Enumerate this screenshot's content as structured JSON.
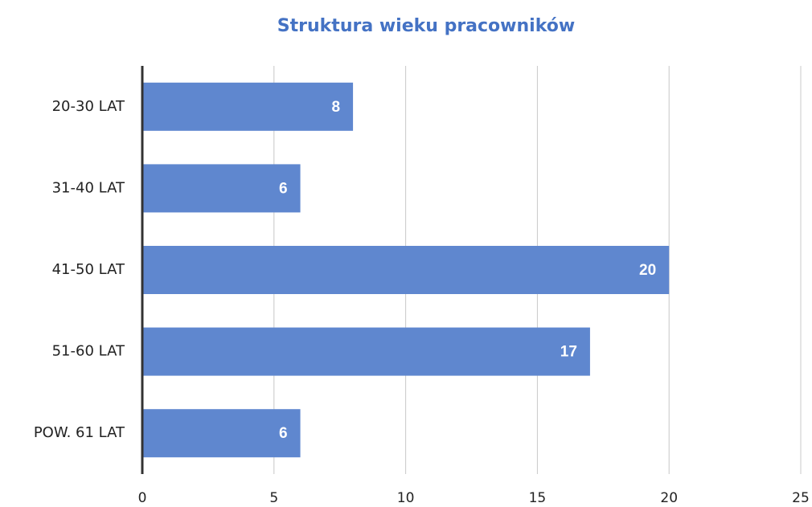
{
  "chart_data": {
    "type": "bar",
    "orientation": "horizontal",
    "title": "Struktura wieku pracowników",
    "categories": [
      "20-30 LAT",
      "31-40 LAT",
      "41-50 LAT",
      "51-60 LAT",
      "POW. 61 LAT"
    ],
    "values": [
      8,
      6,
      20,
      17,
      6
    ],
    "color": "#5f87cf",
    "title_color": "#4472c4",
    "xlim": [
      0,
      25
    ],
    "xticks": [
      0,
      5,
      10,
      15,
      20,
      25
    ],
    "grid": true
  }
}
